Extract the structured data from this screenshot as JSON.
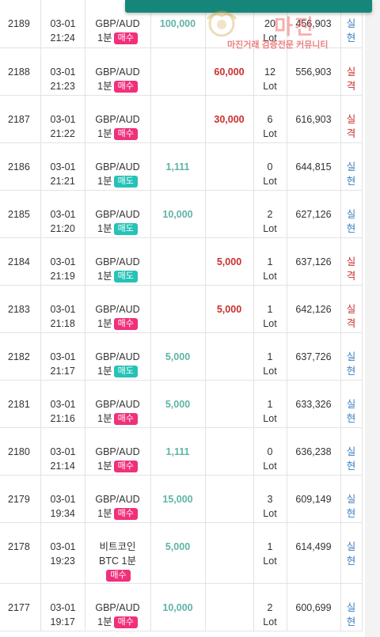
{
  "top_bar": {
    "text": ""
  },
  "watermark": {
    "title": "마진",
    "subtitle": "마진거래 검증전문 커뮤니티"
  },
  "colors": {
    "profit": "#5fb4a6",
    "loss": "#c9302c",
    "buy_badge": "#f0307a",
    "sell_badge": "#26c2b6",
    "status_win": "#3a7fc1",
    "status_lose": "#c9302c"
  },
  "rows": [
    {
      "id": "2189",
      "date": "03-01",
      "time": "21:24",
      "symbol": "GBP/AUD",
      "period": "1분",
      "side": "매수",
      "side_type": "buy",
      "profit": "100,000",
      "loss": "",
      "lot": "20",
      "lot_unit": "Lot",
      "balance": "456,903",
      "status_1": "실",
      "status_2": "현",
      "status_type": "win"
    },
    {
      "id": "2188",
      "date": "03-01",
      "time": "21:23",
      "symbol": "GBP/AUD",
      "period": "1분",
      "side": "매수",
      "side_type": "buy",
      "profit": "",
      "loss": "60,000",
      "lot": "12",
      "lot_unit": "Lot",
      "balance": "556,903",
      "status_1": "실",
      "status_2": "격",
      "status_type": "lose"
    },
    {
      "id": "2187",
      "date": "03-01",
      "time": "21:22",
      "symbol": "GBP/AUD",
      "period": "1분",
      "side": "매수",
      "side_type": "buy",
      "profit": "",
      "loss": "30,000",
      "lot": "6",
      "lot_unit": "Lot",
      "balance": "616,903",
      "status_1": "실",
      "status_2": "격",
      "status_type": "lose"
    },
    {
      "id": "2186",
      "date": "03-01",
      "time": "21:21",
      "symbol": "GBP/AUD",
      "period": "1분",
      "side": "매도",
      "side_type": "sell",
      "profit": "1,111",
      "loss": "",
      "lot": "0",
      "lot_unit": "Lot",
      "balance": "644,815",
      "status_1": "실",
      "status_2": "현",
      "status_type": "win"
    },
    {
      "id": "2185",
      "date": "03-01",
      "time": "21:20",
      "symbol": "GBP/AUD",
      "period": "1분",
      "side": "매도",
      "side_type": "sell",
      "profit": "10,000",
      "loss": "",
      "lot": "2",
      "lot_unit": "Lot",
      "balance": "627,126",
      "status_1": "실",
      "status_2": "현",
      "status_type": "win"
    },
    {
      "id": "2184",
      "date": "03-01",
      "time": "21:19",
      "symbol": "GBP/AUD",
      "period": "1분",
      "side": "매도",
      "side_type": "sell",
      "profit": "",
      "loss": "5,000",
      "lot": "1",
      "lot_unit": "Lot",
      "balance": "637,126",
      "status_1": "실",
      "status_2": "격",
      "status_type": "lose"
    },
    {
      "id": "2183",
      "date": "03-01",
      "time": "21:18",
      "symbol": "GBP/AUD",
      "period": "1분",
      "side": "매수",
      "side_type": "buy",
      "profit": "",
      "loss": "5,000",
      "lot": "1",
      "lot_unit": "Lot",
      "balance": "642,126",
      "status_1": "실",
      "status_2": "격",
      "status_type": "lose"
    },
    {
      "id": "2182",
      "date": "03-01",
      "time": "21:17",
      "symbol": "GBP/AUD",
      "period": "1분",
      "side": "매도",
      "side_type": "sell",
      "profit": "5,000",
      "loss": "",
      "lot": "1",
      "lot_unit": "Lot",
      "balance": "637,726",
      "status_1": "실",
      "status_2": "현",
      "status_type": "win"
    },
    {
      "id": "2181",
      "date": "03-01",
      "time": "21:16",
      "symbol": "GBP/AUD",
      "period": "1분",
      "side": "매수",
      "side_type": "buy",
      "profit": "5,000",
      "loss": "",
      "lot": "1",
      "lot_unit": "Lot",
      "balance": "633,326",
      "status_1": "실",
      "status_2": "현",
      "status_type": "win"
    },
    {
      "id": "2180",
      "date": "03-01",
      "time": "21:14",
      "symbol": "GBP/AUD",
      "period": "1분",
      "side": "매수",
      "side_type": "buy",
      "profit": "1,111",
      "loss": "",
      "lot": "0",
      "lot_unit": "Lot",
      "balance": "636,238",
      "status_1": "실",
      "status_2": "현",
      "status_type": "win"
    },
    {
      "id": "2179",
      "date": "03-01",
      "time": "19:34",
      "symbol": "GBP/AUD",
      "period": "1분",
      "side": "매수",
      "side_type": "buy",
      "profit": "15,000",
      "loss": "",
      "lot": "3",
      "lot_unit": "Lot",
      "balance": "609,149",
      "status_1": "실",
      "status_2": "현",
      "status_type": "win"
    },
    {
      "id": "2178",
      "date": "03-01",
      "time": "19:23",
      "symbol": "비트코인",
      "symbol_2": "BTC 1분",
      "period": "",
      "side": "매수",
      "side_type": "buy",
      "profit": "5,000",
      "loss": "",
      "lot": "1",
      "lot_unit": "Lot",
      "balance": "614,499",
      "status_1": "실",
      "status_2": "현",
      "status_type": "win",
      "tall": true
    },
    {
      "id": "2177",
      "date": "03-01",
      "time": "19:17",
      "symbol": "GBP/AUD",
      "period": "1분",
      "side": "매수",
      "side_type": "buy",
      "profit": "10,000",
      "loss": "",
      "lot": "2",
      "lot_unit": "Lot",
      "balance": "600,699",
      "status_1": "실",
      "status_2": "현",
      "status_type": "win"
    }
  ]
}
